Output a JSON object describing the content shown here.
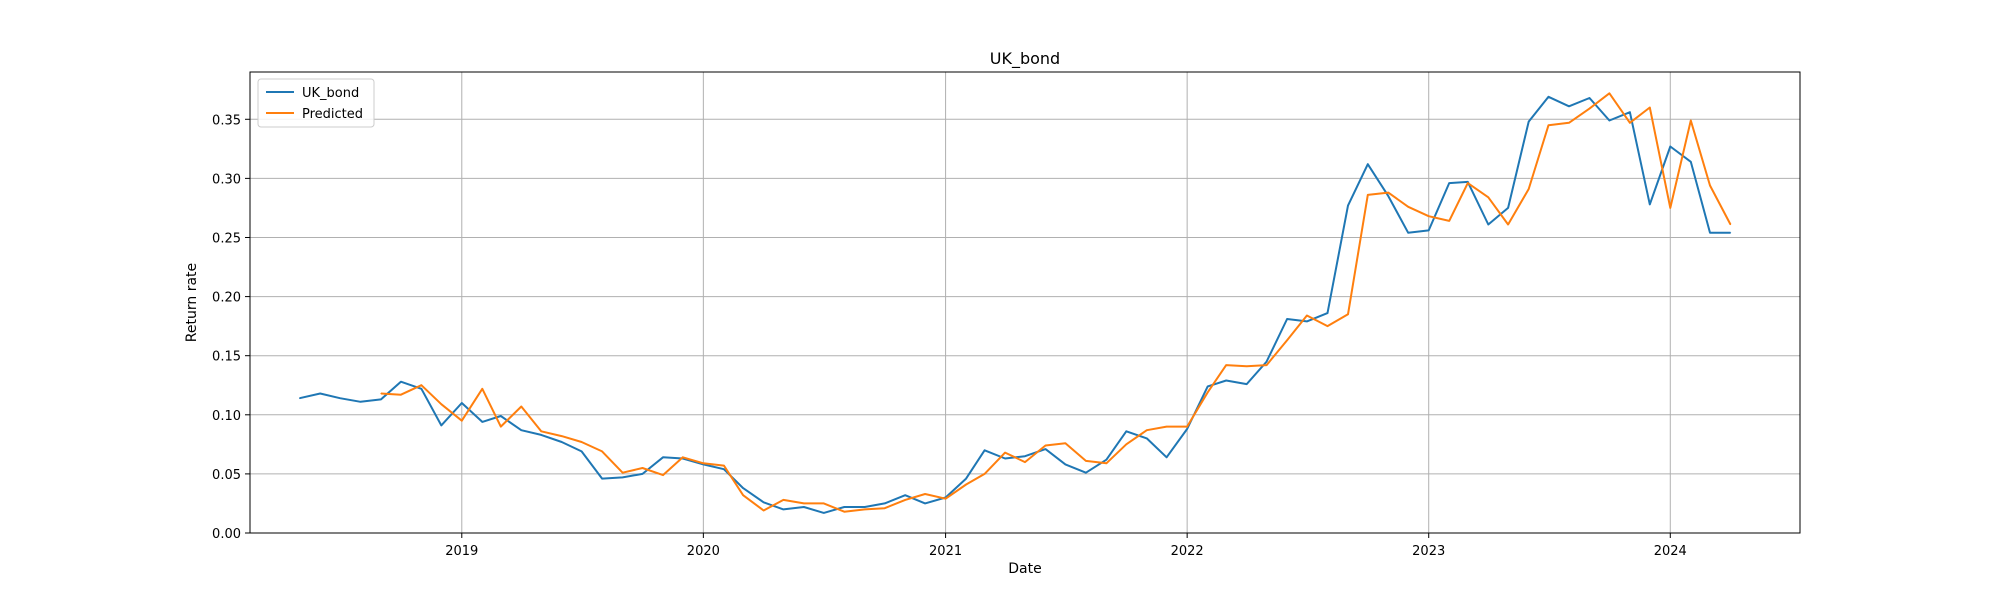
{
  "chart_data": {
    "type": "line",
    "title": "UK_bond",
    "xlabel": "Date",
    "ylabel": "Return rate",
    "xlim": [
      "2018-02-15",
      "2024-07-15"
    ],
    "ylim": [
      0,
      0.39
    ],
    "x_ticks": [
      {
        "date": "2019-01-01",
        "label": "2019"
      },
      {
        "date": "2020-01-01",
        "label": "2020"
      },
      {
        "date": "2021-01-01",
        "label": "2021"
      },
      {
        "date": "2022-01-01",
        "label": "2022"
      },
      {
        "date": "2023-01-01",
        "label": "2023"
      },
      {
        "date": "2024-01-01",
        "label": "2024"
      }
    ],
    "y_ticks": [
      "0.00",
      "0.05",
      "0.10",
      "0.15",
      "0.20",
      "0.25",
      "0.30",
      "0.35"
    ],
    "grid": true,
    "legend_position": "top-left",
    "series": [
      {
        "name": "UK_bond",
        "color": "#1f77b4",
        "points": [
          [
            "2018-05-01",
            0.114
          ],
          [
            "2018-06-01",
            0.118
          ],
          [
            "2018-07-01",
            0.114
          ],
          [
            "2018-08-01",
            0.111
          ],
          [
            "2018-09-01",
            0.113
          ],
          [
            "2018-10-01",
            0.128
          ],
          [
            "2018-11-01",
            0.122
          ],
          [
            "2018-12-01",
            0.091
          ],
          [
            "2019-01-01",
            0.11
          ],
          [
            "2019-02-01",
            0.094
          ],
          [
            "2019-03-01",
            0.099
          ],
          [
            "2019-04-01",
            0.087
          ],
          [
            "2019-05-01",
            0.083
          ],
          [
            "2019-06-01",
            0.077
          ],
          [
            "2019-07-01",
            0.069
          ],
          [
            "2019-08-01",
            0.046
          ],
          [
            "2019-09-01",
            0.047
          ],
          [
            "2019-10-01",
            0.05
          ],
          [
            "2019-11-01",
            0.064
          ],
          [
            "2019-12-01",
            0.063
          ],
          [
            "2020-01-01",
            0.058
          ],
          [
            "2020-02-01",
            0.054
          ],
          [
            "2020-03-01",
            0.038
          ],
          [
            "2020-04-01",
            0.026
          ],
          [
            "2020-05-01",
            0.02
          ],
          [
            "2020-06-01",
            0.022
          ],
          [
            "2020-07-01",
            0.017
          ],
          [
            "2020-08-01",
            0.022
          ],
          [
            "2020-09-01",
            0.022
          ],
          [
            "2020-10-01",
            0.025
          ],
          [
            "2020-11-01",
            0.032
          ],
          [
            "2020-12-01",
            0.025
          ],
          [
            "2021-01-01",
            0.03
          ],
          [
            "2021-02-01",
            0.046
          ],
          [
            "2021-03-01",
            0.07
          ],
          [
            "2021-04-01",
            0.063
          ],
          [
            "2021-05-01",
            0.065
          ],
          [
            "2021-06-01",
            0.071
          ],
          [
            "2021-07-01",
            0.058
          ],
          [
            "2021-08-01",
            0.051
          ],
          [
            "2021-09-01",
            0.062
          ],
          [
            "2021-10-01",
            0.086
          ],
          [
            "2021-11-01",
            0.08
          ],
          [
            "2021-12-01",
            0.064
          ],
          [
            "2022-01-01",
            0.088
          ],
          [
            "2022-02-01",
            0.124
          ],
          [
            "2022-03-01",
            0.129
          ],
          [
            "2022-04-01",
            0.126
          ],
          [
            "2022-05-01",
            0.145
          ],
          [
            "2022-06-01",
            0.181
          ],
          [
            "2022-07-01",
            0.179
          ],
          [
            "2022-08-01",
            0.186
          ],
          [
            "2022-09-01",
            0.277
          ],
          [
            "2022-10-01",
            0.312
          ],
          [
            "2022-11-01",
            0.285
          ],
          [
            "2022-12-01",
            0.254
          ],
          [
            "2023-01-01",
            0.256
          ],
          [
            "2023-02-01",
            0.296
          ],
          [
            "2023-03-01",
            0.297
          ],
          [
            "2023-04-01",
            0.261
          ],
          [
            "2023-05-01",
            0.275
          ],
          [
            "2023-06-01",
            0.348
          ],
          [
            "2023-07-01",
            0.369
          ],
          [
            "2023-08-01",
            0.361
          ],
          [
            "2023-09-01",
            0.368
          ],
          [
            "2023-10-01",
            0.349
          ],
          [
            "2023-11-01",
            0.356
          ],
          [
            "2023-12-01",
            0.278
          ],
          [
            "2024-01-01",
            0.327
          ],
          [
            "2024-02-01",
            0.314
          ],
          [
            "2024-03-01",
            0.254
          ],
          [
            "2024-04-01",
            0.254
          ]
        ]
      },
      {
        "name": "Predicted",
        "color": "#ff7f0e",
        "points": [
          [
            "2018-09-01",
            0.118
          ],
          [
            "2018-10-01",
            0.117
          ],
          [
            "2018-11-01",
            0.125
          ],
          [
            "2018-12-01",
            0.109
          ],
          [
            "2019-01-01",
            0.095
          ],
          [
            "2019-02-01",
            0.122
          ],
          [
            "2019-03-01",
            0.09
          ],
          [
            "2019-04-01",
            0.107
          ],
          [
            "2019-05-01",
            0.086
          ],
          [
            "2019-06-01",
            0.082
          ],
          [
            "2019-07-01",
            0.077
          ],
          [
            "2019-08-01",
            0.069
          ],
          [
            "2019-09-01",
            0.051
          ],
          [
            "2019-10-01",
            0.055
          ],
          [
            "2019-11-01",
            0.049
          ],
          [
            "2019-12-01",
            0.064
          ],
          [
            "2020-01-01",
            0.059
          ],
          [
            "2020-02-01",
            0.057
          ],
          [
            "2020-03-01",
            0.032
          ],
          [
            "2020-04-01",
            0.019
          ],
          [
            "2020-05-01",
            0.028
          ],
          [
            "2020-06-01",
            0.025
          ],
          [
            "2020-07-01",
            0.025
          ],
          [
            "2020-08-01",
            0.018
          ],
          [
            "2020-09-01",
            0.02
          ],
          [
            "2020-10-01",
            0.021
          ],
          [
            "2020-11-01",
            0.028
          ],
          [
            "2020-12-01",
            0.033
          ],
          [
            "2021-01-01",
            0.029
          ],
          [
            "2021-02-01",
            0.041
          ],
          [
            "2021-03-01",
            0.05
          ],
          [
            "2021-04-01",
            0.068
          ],
          [
            "2021-05-01",
            0.06
          ],
          [
            "2021-06-01",
            0.074
          ],
          [
            "2021-07-01",
            0.076
          ],
          [
            "2021-08-01",
            0.061
          ],
          [
            "2021-09-01",
            0.059
          ],
          [
            "2021-10-01",
            0.075
          ],
          [
            "2021-11-01",
            0.087
          ],
          [
            "2021-12-01",
            0.09
          ],
          [
            "2022-01-01",
            0.09
          ],
          [
            "2022-02-01",
            0.119
          ],
          [
            "2022-03-01",
            0.142
          ],
          [
            "2022-04-01",
            0.141
          ],
          [
            "2022-05-01",
            0.142
          ],
          [
            "2022-06-01",
            0.163
          ],
          [
            "2022-07-01",
            0.184
          ],
          [
            "2022-08-01",
            0.175
          ],
          [
            "2022-09-01",
            0.185
          ],
          [
            "2022-10-01",
            0.286
          ],
          [
            "2022-11-01",
            0.288
          ],
          [
            "2022-12-01",
            0.276
          ],
          [
            "2023-01-01",
            0.268
          ],
          [
            "2023-02-01",
            0.264
          ],
          [
            "2023-03-01",
            0.296
          ],
          [
            "2023-04-01",
            0.284
          ],
          [
            "2023-05-01",
            0.261
          ],
          [
            "2023-06-01",
            0.291
          ],
          [
            "2023-07-01",
            0.345
          ],
          [
            "2023-08-01",
            0.347
          ],
          [
            "2023-09-01",
            0.359
          ],
          [
            "2023-10-01",
            0.372
          ],
          [
            "2023-11-01",
            0.347
          ],
          [
            "2023-12-01",
            0.36
          ],
          [
            "2024-01-01",
            0.275
          ],
          [
            "2024-02-01",
            0.349
          ],
          [
            "2024-03-01",
            0.294
          ],
          [
            "2024-04-01",
            0.261
          ]
        ]
      }
    ]
  }
}
